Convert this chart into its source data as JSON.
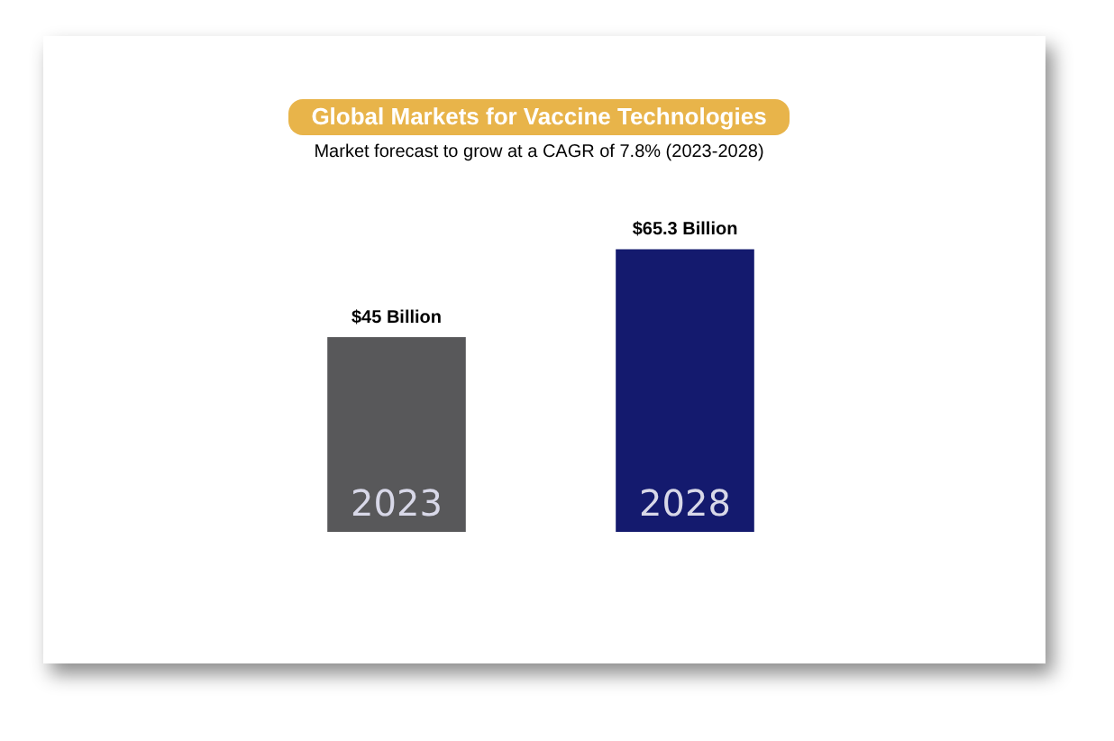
{
  "chart_data": {
    "type": "bar",
    "title": "Global Markets for Vaccine Technologies",
    "subtitle": "Market forecast to grow at a CAGR of 7.8% (2023-2028)",
    "categories": [
      "2023",
      "2028"
    ],
    "values": [
      45,
      65.3
    ],
    "colors": [
      "#58585a",
      "#141a6e"
    ],
    "value_labels": [
      "$45 Billion",
      "$65.3 Billion"
    ],
    "legend": false
  }
}
